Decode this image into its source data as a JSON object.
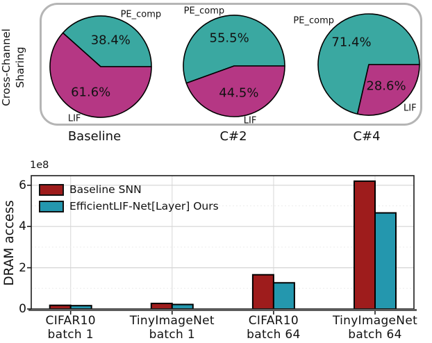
{
  "top": {
    "side_label_line1": "Cross-Channel",
    "side_label_line2": "Sharing"
  },
  "chart_data": [
    {
      "type": "pie",
      "group_label": "Cross-Channel Sharing",
      "slice_colors": {
        "PE_comp": "#3aa8a1",
        "LIF": "#b53784"
      },
      "pies": [
        {
          "label": "Baseline",
          "slices": [
            {
              "name": "PE_comp",
              "pct": 38.4
            },
            {
              "name": "LIF",
              "pct": 61.6
            }
          ]
        },
        {
          "label": "C#2",
          "slices": [
            {
              "name": "PE_comp",
              "pct": 55.5
            },
            {
              "name": "LIF",
              "pct": 44.5
            }
          ]
        },
        {
          "label": "C#4",
          "slices": [
            {
              "name": "PE_comp",
              "pct": 71.4
            },
            {
              "name": "LIF",
              "pct": 28.6
            }
          ]
        }
      ]
    },
    {
      "type": "bar",
      "ylabel": "DRAM access",
      "scale_label": "1e8",
      "unit": "1e8",
      "ylim": [
        0,
        6.5
      ],
      "yticks": [
        "0",
        "2",
        "4",
        "6"
      ],
      "grid": true,
      "legend_position": "upper left",
      "categories": [
        {
          "l1": "CIFAR10",
          "l2": "batch 1"
        },
        {
          "l1": "TinyImageNet",
          "l2": "batch 1"
        },
        {
          "l1": "CIFAR10",
          "l2": "batch 64"
        },
        {
          "l1": "TinyImageNet",
          "l2": "batch 64"
        }
      ],
      "series": [
        {
          "name": "Baseline SNN",
          "color": "#9e1c1c",
          "values": [
            0.18,
            0.27,
            1.66,
            6.2
          ]
        },
        {
          "name": "EfficientLIF-Net[Layer] Ours",
          "color": "#2497ae",
          "values": [
            0.16,
            0.22,
            1.27,
            4.66
          ]
        }
      ]
    }
  ]
}
